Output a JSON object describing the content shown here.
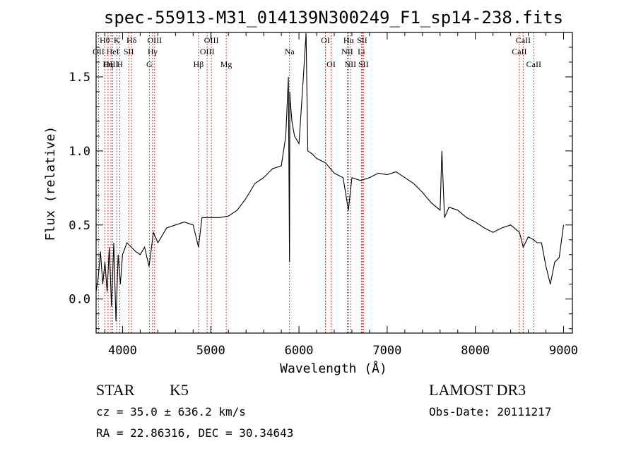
{
  "chart_data": {
    "type": "line",
    "title": "spec-55913-M31_014139N300249_F1_sp14-238.fits",
    "xlabel": "Wavelength (Å)",
    "ylabel": "Flux (relative)",
    "xlim": [
      3700,
      9100
    ],
    "ylim": [
      -0.23,
      1.8
    ],
    "xticks": [
      4000,
      5000,
      6000,
      7000,
      8000,
      9000
    ],
    "yticks": [
      0.0,
      0.5,
      1.0,
      1.5
    ],
    "ytick_labels": [
      "0.0",
      "0.5",
      "1.0",
      "1.5"
    ],
    "grid": false,
    "series": [
      {
        "x": [
          3700,
          3725,
          3750,
          3775,
          3800,
          3825,
          3850,
          3875,
          3900,
          3925,
          3950,
          3975,
          4000,
          4050,
          4100,
          4150,
          4200,
          4250,
          4300,
          4350,
          4400,
          4500,
          4600,
          4700,
          4800,
          4861,
          4900,
          5000,
          5100,
          5200,
          5300,
          5400,
          5500,
          5600,
          5700,
          5800,
          5850,
          5880,
          5893,
          5896,
          5900,
          5920,
          5950,
          6000,
          6050,
          6080,
          6100,
          6150,
          6200,
          6300,
          6400,
          6500,
          6560,
          6600,
          6700,
          6800,
          6900,
          7000,
          7100,
          7200,
          7300,
          7400,
          7500,
          7600,
          7620,
          7650,
          7700,
          7800,
          7900,
          8000,
          8100,
          8200,
          8300,
          8400,
          8500,
          8542,
          8600,
          8662,
          8700,
          8750,
          8800,
          8850,
          8900,
          8950,
          9000
        ],
        "y": [
          0.05,
          0.15,
          0.32,
          0.1,
          0.25,
          0.05,
          0.35,
          -0.05,
          0.38,
          -0.15,
          0.3,
          0.1,
          0.3,
          0.38,
          0.35,
          0.32,
          0.3,
          0.35,
          0.22,
          0.45,
          0.38,
          0.48,
          0.5,
          0.52,
          0.5,
          0.35,
          0.55,
          0.55,
          0.55,
          0.56,
          0.6,
          0.68,
          0.78,
          0.82,
          0.88,
          0.9,
          1.1,
          1.5,
          0.25,
          1.4,
          1.35,
          1.2,
          1.1,
          1.05,
          1.5,
          1.85,
          1.0,
          0.98,
          0.95,
          0.92,
          0.85,
          0.82,
          0.6,
          0.82,
          0.8,
          0.82,
          0.85,
          0.84,
          0.86,
          0.82,
          0.78,
          0.72,
          0.65,
          0.6,
          1.0,
          0.55,
          0.62,
          0.6,
          0.55,
          0.52,
          0.48,
          0.45,
          0.48,
          0.5,
          0.45,
          0.35,
          0.42,
          0.4,
          0.38,
          0.38,
          0.22,
          0.1,
          0.25,
          0.28,
          0.5
        ]
      }
    ],
    "lines": [
      {
        "name": "Hθ",
        "w": 3798,
        "row": 1
      },
      {
        "name": "OII",
        "w": 3727,
        "row": 2
      },
      {
        "name": "OIII",
        "w": 3869,
        "row": 3
      },
      {
        "name": "K",
        "w": 3934,
        "row": 1
      },
      {
        "name": "HeI",
        "w": 3889,
        "row": 2
      },
      {
        "name": "Hη",
        "w": 3835,
        "row": 3
      },
      {
        "name": "H",
        "w": 3969,
        "row": 3
      },
      {
        "name": "SII",
        "w": 4070,
        "row": 2
      },
      {
        "name": "Hδ",
        "w": 4102,
        "row": 1
      },
      {
        "name": "OIII",
        "w": 4363,
        "row": 1
      },
      {
        "name": "Hγ",
        "w": 4340,
        "row": 2
      },
      {
        "name": "G",
        "w": 4304,
        "row": 3
      },
      {
        "name": "OIII",
        "w": 5007,
        "row": 1
      },
      {
        "name": "OIII",
        "w": 4959,
        "row": 2
      },
      {
        "name": "Hβ",
        "w": 4861,
        "row": 3
      },
      {
        "name": "Mg",
        "w": 5175,
        "row": 3
      },
      {
        "name": "Na",
        "w": 5893,
        "row": 2
      },
      {
        "name": "OI",
        "w": 6300,
        "row": 1
      },
      {
        "name": "OI",
        "w": 6364,
        "row": 3
      },
      {
        "name": "Hα",
        "w": 6563,
        "row": 1
      },
      {
        "name": "SII",
        "w": 6716,
        "row": 1
      },
      {
        "name": "NII",
        "w": 6548,
        "row": 2
      },
      {
        "name": "Li",
        "w": 6708,
        "row": 2
      },
      {
        "name": "NII",
        "w": 6583,
        "row": 3
      },
      {
        "name": "SII",
        "w": 6731,
        "row": 3
      },
      {
        "name": "CaII",
        "w": 8542,
        "row": 1
      },
      {
        "name": "CaII",
        "w": 8498,
        "row": 2
      },
      {
        "name": "CaII",
        "w": 8662,
        "row": 3
      }
    ]
  },
  "info": {
    "class": "STAR",
    "subclass": "K5",
    "survey": "LAMOST DR3",
    "cz": "cz = 35.0 ± 636.2 km/s",
    "obsdate": "Obs-Date: 20111217",
    "radec": "RA =  22.86316, DEC =  30.34643"
  }
}
